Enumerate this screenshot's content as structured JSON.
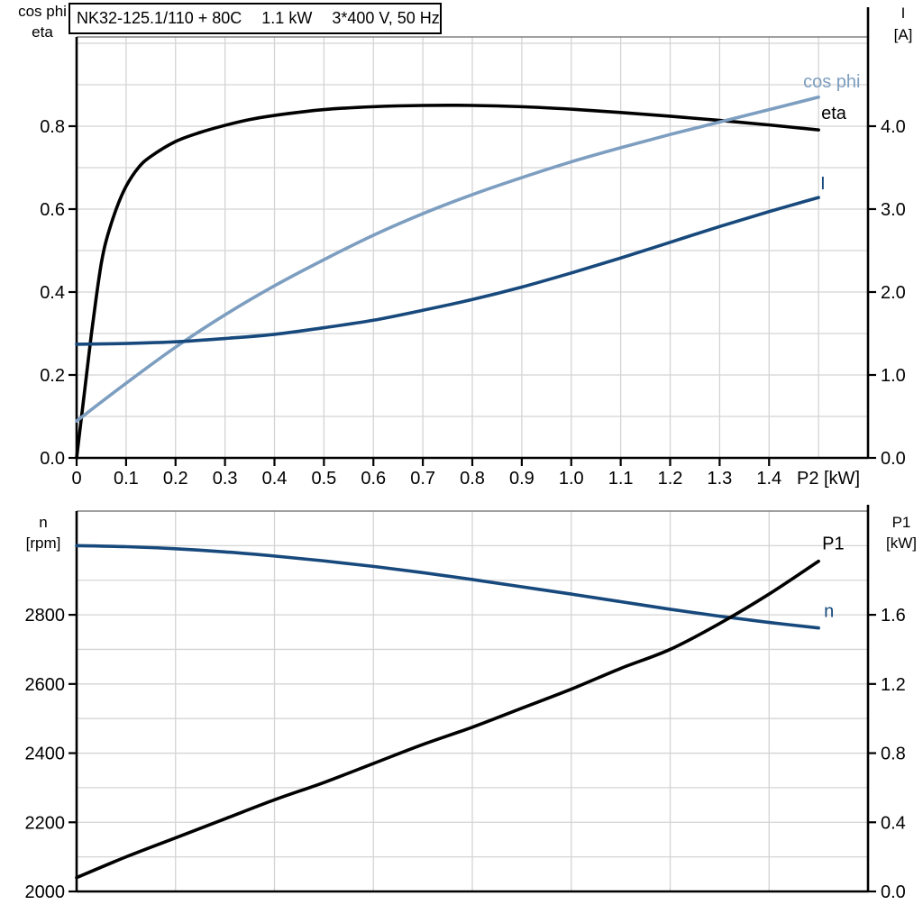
{
  "title_box": {
    "segments": [
      "NK32-125.1/110 + 80C",
      "1.1 kW",
      "3*400 V, 50 Hz"
    ]
  },
  "chart_data": [
    {
      "id": "top",
      "type": "line",
      "title": "Motor electrical curves: cos phi, eta, I vs shaft power P2",
      "x_axis": {
        "label": "P2 [kW]",
        "range": [
          0,
          1.6
        ],
        "grid_step": 0.1,
        "tick_values": [
          0,
          0.1,
          0.2,
          0.3,
          0.4,
          0.5,
          0.6,
          0.7,
          0.8,
          0.9,
          1.0,
          1.1,
          1.2,
          1.3,
          1.4
        ],
        "tick_labels": [
          "0",
          "0.1",
          "0.2",
          "0.3",
          "0.4",
          "0.5",
          "0.6",
          "0.7",
          "0.8",
          "0.9",
          "1.0",
          "1.1",
          "1.2",
          "1.3",
          "1.4"
        ]
      },
      "left_axis": {
        "title_lines": [
          "cos phi",
          "eta"
        ],
        "range": [
          0,
          1.0152
        ],
        "grid_step": 0.1,
        "tick_values": [
          0,
          0.2,
          0.4,
          0.6,
          0.8
        ],
        "tick_labels": [
          "0.0",
          "0.2",
          "0.4",
          "0.6",
          "0.8"
        ]
      },
      "right_axis": {
        "title_lines": [
          "I",
          "[A]"
        ],
        "range": [
          0,
          5.076
        ],
        "tick_values": [
          0,
          1,
          2,
          3,
          4
        ],
        "tick_labels": [
          "0.0",
          "1.0",
          "2.0",
          "3.0",
          "4.0"
        ]
      },
      "series": [
        {
          "name": "eta",
          "label": "eta",
          "axis": "left",
          "color": "#000000",
          "x": [
            0,
            0.01,
            0.02,
            0.03,
            0.04,
            0.05,
            0.06,
            0.08,
            0.1,
            0.125,
            0.15,
            0.2,
            0.25,
            0.3,
            0.35,
            0.4,
            0.5,
            0.6,
            0.7,
            0.8,
            0.9,
            1.0,
            1.1,
            1.2,
            1.3,
            1.4,
            1.5
          ],
          "y": [
            0,
            0.1,
            0.2,
            0.3,
            0.39,
            0.47,
            0.525,
            0.6,
            0.655,
            0.7,
            0.727,
            0.763,
            0.785,
            0.802,
            0.816,
            0.826,
            0.84,
            0.847,
            0.85,
            0.85,
            0.847,
            0.841,
            0.833,
            0.824,
            0.814,
            0.803,
            0.791
          ]
        },
        {
          "name": "cos-phi",
          "label": "cos phi",
          "axis": "left",
          "color": "#7D9EC0",
          "x": [
            0,
            0.1,
            0.2,
            0.3,
            0.4,
            0.5,
            0.6,
            0.7,
            0.8,
            0.9,
            1.0,
            1.1,
            1.2,
            1.3,
            1.4,
            1.5
          ],
          "y": [
            0.089,
            0.18,
            0.267,
            0.345,
            0.415,
            0.478,
            0.537,
            0.589,
            0.635,
            0.676,
            0.714,
            0.748,
            0.78,
            0.81,
            0.84,
            0.87
          ]
        },
        {
          "name": "current",
          "label": "I",
          "axis": "right",
          "color": "#17497C",
          "x": [
            0,
            0.1,
            0.2,
            0.3,
            0.4,
            0.5,
            0.6,
            0.7,
            0.8,
            0.9,
            1.0,
            1.1,
            1.2,
            1.3,
            1.4,
            1.5
          ],
          "y": [
            1.37,
            1.38,
            1.4,
            1.44,
            1.49,
            1.57,
            1.66,
            1.78,
            1.91,
            2.06,
            2.23,
            2.41,
            2.6,
            2.79,
            2.97,
            3.14
          ]
        }
      ]
    },
    {
      "id": "bottom",
      "type": "line",
      "title": "Motor mechanical curves: speed n and input power P1 vs shaft power P2",
      "x_axis": {
        "label": null,
        "range": [
          0,
          1.6
        ],
        "grid_step": 0.2,
        "tick_values": [],
        "tick_labels": []
      },
      "left_axis": {
        "title_lines": [
          "n",
          "[rpm]"
        ],
        "range": [
          2000,
          3100
        ],
        "grid_step": 100,
        "tick_values": [
          2000,
          2200,
          2400,
          2600,
          2800
        ],
        "tick_labels": [
          "2000",
          "2200",
          "2400",
          "2600",
          "2800"
        ]
      },
      "right_axis": {
        "title_lines": [
          "P1",
          "[kW]"
        ],
        "range": [
          0,
          2.2
        ],
        "tick_values": [
          0,
          0.4,
          0.8,
          1.2,
          1.6
        ],
        "tick_labels": [
          "0.0",
          "0.4",
          "0.8",
          "1.2",
          "1.6"
        ]
      },
      "series": [
        {
          "name": "speed",
          "label": "n",
          "axis": "left",
          "color": "#17497C",
          "x": [
            0,
            0.1,
            0.2,
            0.3,
            0.4,
            0.5,
            0.6,
            0.7,
            0.8,
            0.9,
            1.0,
            1.1,
            1.2,
            1.3,
            1.4,
            1.5
          ],
          "y": [
            3000,
            2997,
            2991,
            2982,
            2970,
            2956,
            2940,
            2922,
            2902,
            2881,
            2860,
            2838,
            2816,
            2796,
            2778,
            2762
          ]
        },
        {
          "name": "input-power",
          "label": "P1",
          "axis": "right",
          "color": "#000000",
          "x": [
            0,
            0.1,
            0.2,
            0.3,
            0.4,
            0.5,
            0.6,
            0.7,
            0.8,
            0.9,
            1.0,
            1.1,
            1.2,
            1.3,
            1.4,
            1.5
          ],
          "y": [
            0.08,
            0.2,
            0.31,
            0.42,
            0.53,
            0.63,
            0.74,
            0.85,
            0.95,
            1.06,
            1.17,
            1.29,
            1.4,
            1.55,
            1.72,
            1.91
          ]
        }
      ]
    }
  ],
  "colors": {
    "grid": "#D4D4D4",
    "axis": "#000000",
    "plot_top_border": "#808080",
    "cos_phi_and_labels_blue": "#7D9EC0",
    "dark_blue": "#17497C"
  }
}
